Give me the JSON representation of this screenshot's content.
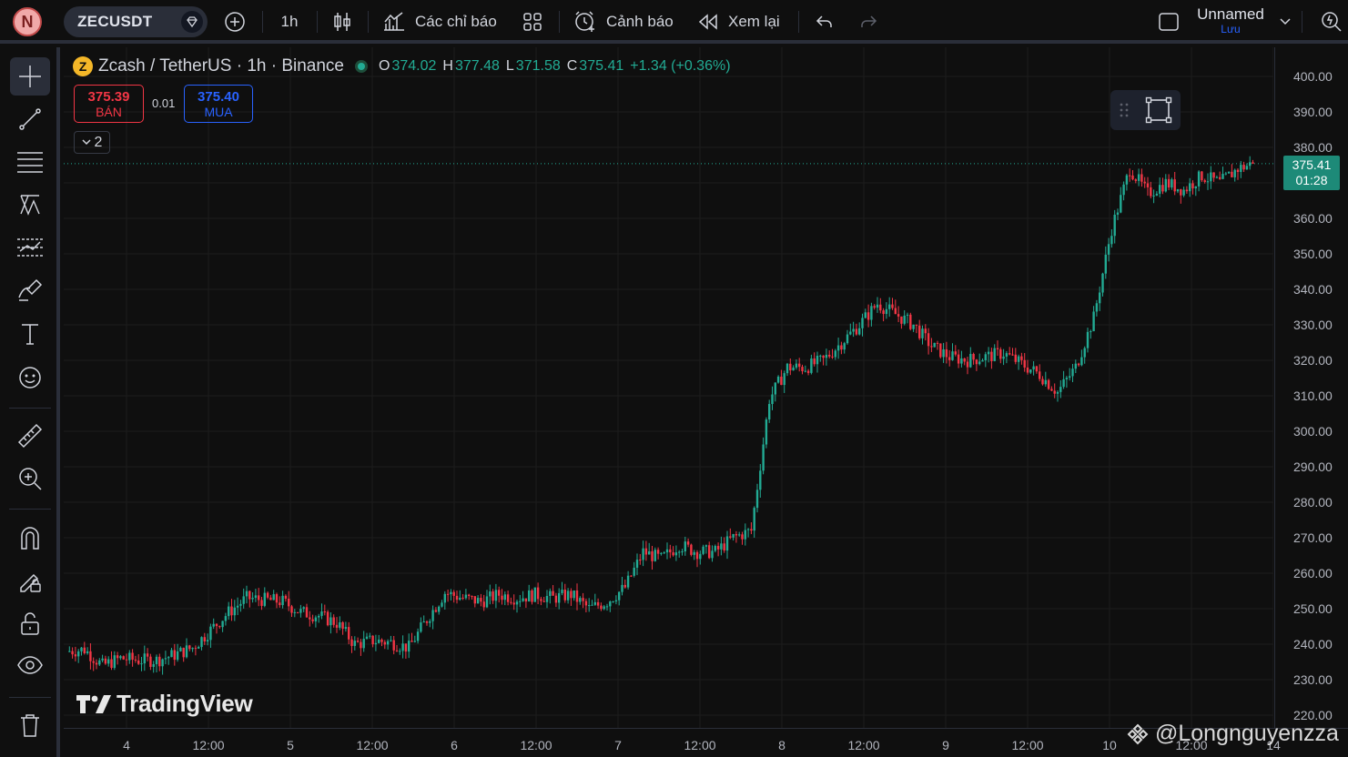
{
  "topbar": {
    "avatar_letter": "N",
    "symbol": "ZECUSDT",
    "interval": "1h",
    "indicators_label": "Các chỉ báo",
    "alert_label": "Cảnh báo",
    "replay_label": "Xem lại",
    "layout_name": "Unnamed",
    "save_label": "Lưu"
  },
  "legend": {
    "title": "Zcash / TetherUS · 1h · Binance",
    "coin_icon": "zcash-coin-icon",
    "o_label": "O",
    "o": "374.02",
    "h_label": "H",
    "h": "377.48",
    "l_label": "L",
    "l": "371.58",
    "c_label": "C",
    "c": "375.41",
    "change": "+1.34 (+0.36%)"
  },
  "trade": {
    "sell_price": "375.39",
    "sell_label": "BÁN",
    "spread": "0.01",
    "buy_price": "375.40",
    "buy_label": "MUA",
    "collapse_count": "2"
  },
  "price_tag": {
    "price": "375.41",
    "countdown": "01:28"
  },
  "branding": {
    "logo_text": "TradingView",
    "watermark": "@Longnguyenzza"
  },
  "colors": {
    "up": "#22ab94",
    "down": "#f23645",
    "background": "#0f0f0f",
    "grid": "#1e1e1e"
  },
  "chart_data": {
    "type": "candlestick",
    "symbol": "ZECUSDT",
    "interval": "1h",
    "ylim": [
      216,
      408
    ],
    "y_ticks": [
      400,
      390,
      380,
      370,
      360,
      350,
      340,
      330,
      320,
      310,
      300,
      290,
      280,
      270,
      260,
      250,
      240,
      230,
      220
    ],
    "y_tick_labels": [
      "400.00",
      "390.00",
      "380.00",
      "",
      "360.00",
      "350.00",
      "340.00",
      "330.00",
      "320.00",
      "310.00",
      "300.00",
      "290.00",
      "280.00",
      "270.00",
      "260.00",
      "250.00",
      "240.00",
      "230.00",
      "220.00"
    ],
    "x_ticks": [
      "4",
      "12:00",
      "5",
      "12:00",
      "6",
      "12:00",
      "7",
      "12:00",
      "8",
      "12:00",
      "9",
      "12:00",
      "10",
      "12:00",
      "14"
    ],
    "last_price": 375.41,
    "close_path": [
      [
        0,
        238
      ],
      [
        6,
        238.5
      ],
      [
        12,
        234
      ],
      [
        18,
        236
      ],
      [
        24,
        235.5
      ],
      [
        30,
        235.5
      ],
      [
        36,
        237
      ],
      [
        42,
        239
      ],
      [
        48,
        244
      ],
      [
        54,
        249
      ],
      [
        60,
        253
      ],
      [
        66,
        252.5
      ],
      [
        72,
        252
      ],
      [
        78,
        249
      ],
      [
        84,
        248
      ],
      [
        90,
        246
      ],
      [
        96,
        240
      ],
      [
        102,
        241
      ],
      [
        108,
        240.5
      ],
      [
        114,
        239
      ],
      [
        120,
        247
      ],
      [
        126,
        254.5
      ],
      [
        132,
        253
      ],
      [
        138,
        252
      ],
      [
        144,
        254
      ],
      [
        150,
        253
      ],
      [
        156,
        254
      ],
      [
        162,
        253
      ],
      [
        168,
        254
      ],
      [
        174,
        250
      ],
      [
        180,
        252
      ],
      [
        186,
        256
      ],
      [
        192,
        266
      ],
      [
        198,
        264
      ],
      [
        204,
        268
      ],
      [
        210,
        266
      ],
      [
        216,
        266
      ],
      [
        222,
        270
      ],
      [
        228,
        272
      ],
      [
        234,
        309
      ],
      [
        240,
        318
      ],
      [
        246,
        318
      ],
      [
        252,
        320
      ],
      [
        258,
        325
      ],
      [
        264,
        330
      ],
      [
        270,
        336
      ],
      [
        276,
        333
      ],
      [
        282,
        330
      ],
      [
        288,
        324
      ],
      [
        294,
        321
      ],
      [
        300,
        320
      ],
      [
        306,
        321
      ],
      [
        312,
        322
      ],
      [
        318,
        319
      ],
      [
        324,
        316
      ],
      [
        330,
        311
      ],
      [
        336,
        318
      ],
      [
        342,
        332
      ],
      [
        348,
        357
      ],
      [
        354,
        374
      ],
      [
        360,
        367
      ],
      [
        366,
        370
      ],
      [
        372,
        368
      ],
      [
        378,
        372
      ],
      [
        384,
        370
      ],
      [
        390,
        374
      ],
      [
        395,
        375.41
      ]
    ]
  }
}
